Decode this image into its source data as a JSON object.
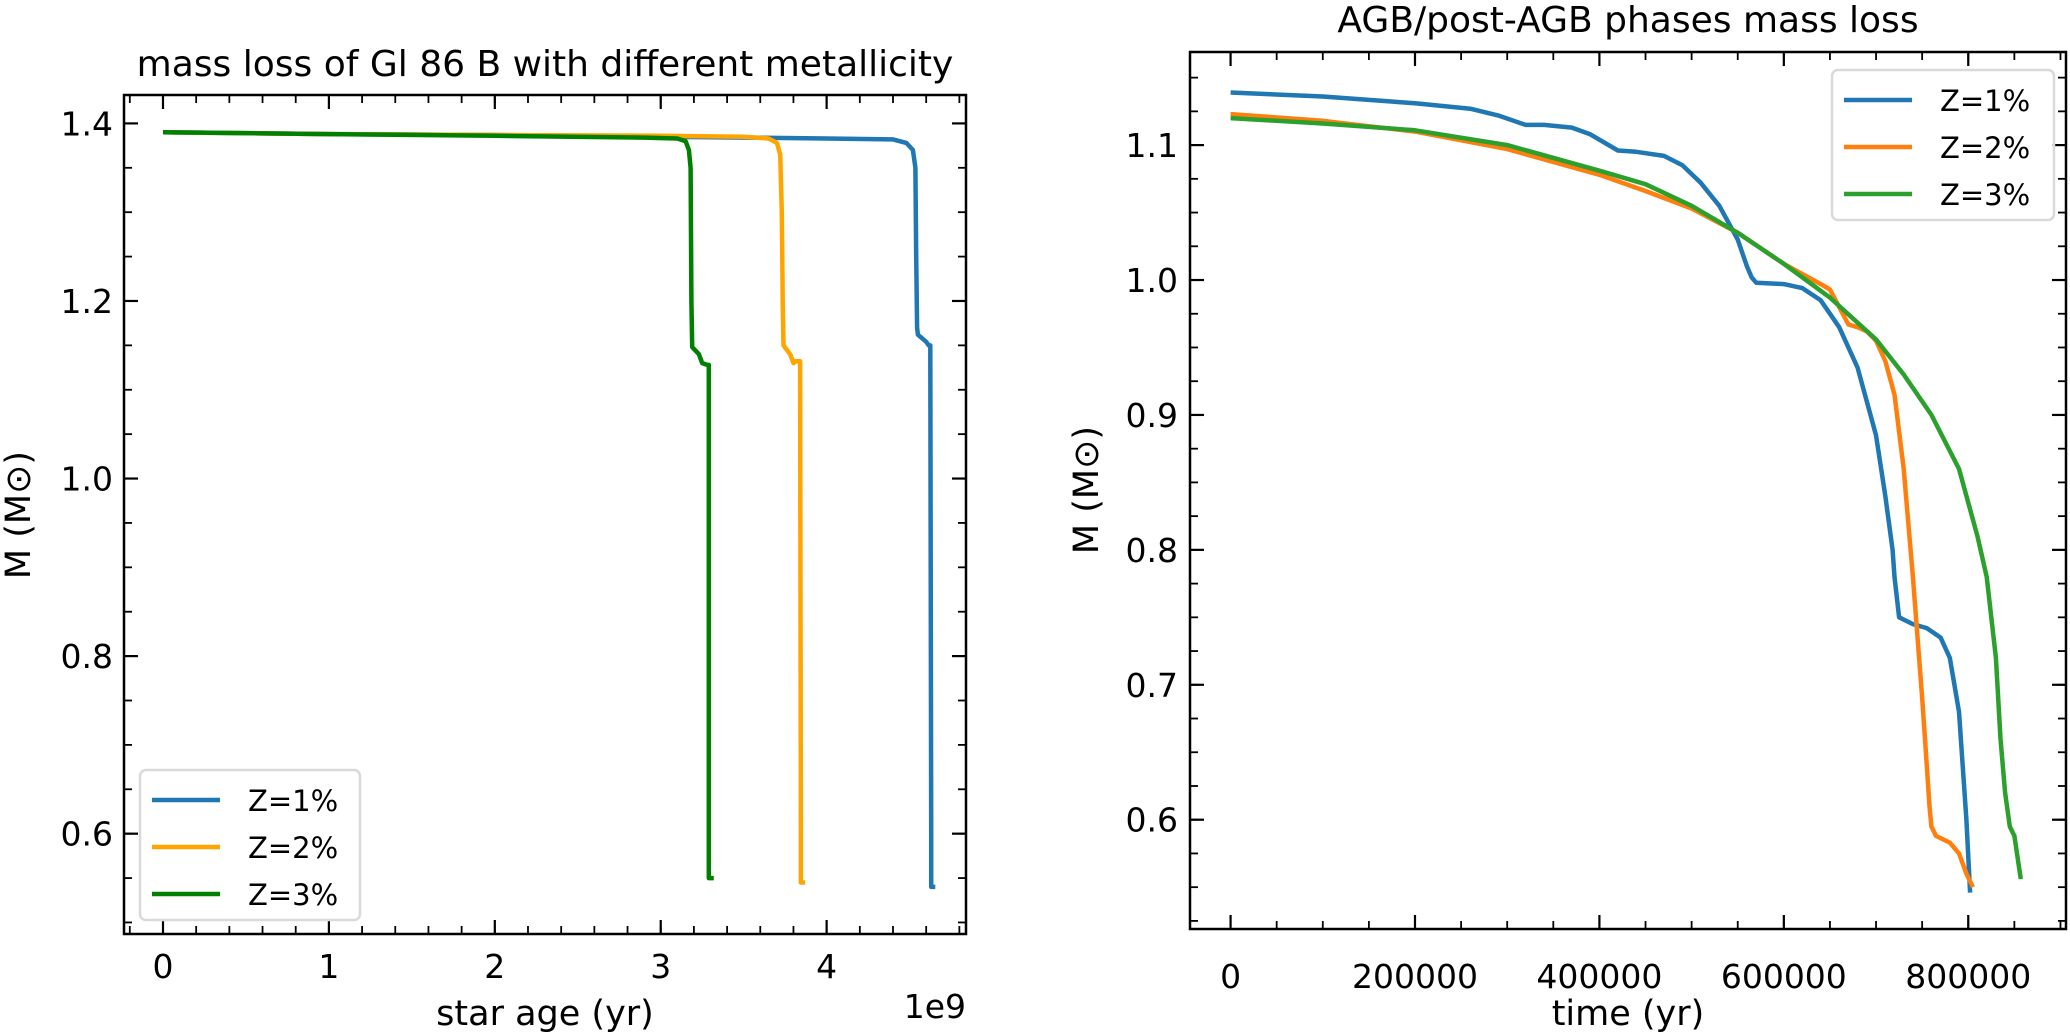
{
  "chart_data": [
    {
      "type": "line",
      "title": "mass loss of Gl 86 B with different metallicity",
      "xlabel": "star age (yr)",
      "ylabel": "M (M⊙)",
      "x_offset_label": "1e9",
      "xlim": [
        -0.235,
        4.84
      ],
      "ylim": [
        0.487,
        1.432
      ],
      "xticks": [
        0,
        1,
        2,
        3,
        4
      ],
      "xtick_labels": [
        "0",
        "1",
        "2",
        "3",
        "4"
      ],
      "yticks": [
        0.6,
        0.8,
        1.0,
        1.2,
        1.4
      ],
      "ytick_labels": [
        "0.6",
        "0.8",
        "1.0",
        "1.2",
        "1.4"
      ],
      "x_minor_step": 0.2,
      "y_minor_step": 0.05,
      "grid": false,
      "legend_position": "lower-left",
      "series": [
        {
          "name": "Z=1%",
          "color": "#1f77b4",
          "x": [
            0,
            1.0,
            2.0,
            3.0,
            4.0,
            4.4,
            4.48,
            4.52,
            4.535,
            4.54,
            4.545,
            4.55,
            4.6,
            4.615,
            4.625,
            4.63,
            4.63,
            4.655
          ],
          "y": [
            1.39,
            1.388,
            1.387,
            1.385,
            1.383,
            1.382,
            1.378,
            1.37,
            1.35,
            1.25,
            1.17,
            1.162,
            1.154,
            1.15,
            1.15,
            0.6,
            0.54,
            0.54
          ]
        },
        {
          "name": "Z=2%",
          "color": "#ffa500",
          "x": [
            0,
            1.0,
            2.0,
            3.0,
            3.5,
            3.65,
            3.7,
            3.72,
            3.73,
            3.735,
            3.74,
            3.78,
            3.8,
            3.81,
            3.84,
            3.845,
            3.845,
            3.87
          ],
          "y": [
            1.39,
            1.388,
            1.387,
            1.386,
            1.385,
            1.383,
            1.378,
            1.365,
            1.3,
            1.2,
            1.15,
            1.14,
            1.13,
            1.132,
            1.132,
            0.6,
            0.545,
            0.545
          ]
        },
        {
          "name": "Z=3%",
          "color": "#008000",
          "x": [
            0,
            1.0,
            2.0,
            2.9,
            3.1,
            3.15,
            3.17,
            3.18,
            3.185,
            3.19,
            3.23,
            3.25,
            3.28,
            3.29,
            3.29,
            3.32
          ],
          "y": [
            1.39,
            1.388,
            1.386,
            1.384,
            1.383,
            1.38,
            1.37,
            1.35,
            1.2,
            1.148,
            1.14,
            1.13,
            1.128,
            1.128,
            0.55,
            0.55
          ]
        }
      ]
    },
    {
      "type": "line",
      "title": "AGB/post-AGB phases mass loss",
      "xlabel": "time (yr)",
      "ylabel": "M (M⊙)",
      "xlim": [
        -44000,
        906000
      ],
      "ylim": [
        0.519,
        1.169
      ],
      "xticks": [
        0,
        200000,
        400000,
        600000,
        800000
      ],
      "xtick_labels": [
        "0",
        "200000",
        "400000",
        "600000",
        "800000"
      ],
      "yticks": [
        0.6,
        0.7,
        0.8,
        0.9,
        1.0,
        1.1
      ],
      "ytick_labels": [
        "0.6",
        "0.7",
        "0.8",
        "0.9",
        "1.0",
        "1.1"
      ],
      "x_minor_step": 50000,
      "y_minor_step": 0.025,
      "grid": false,
      "legend_position": "top-right",
      "series": [
        {
          "name": "Z=1%",
          "color": "#1f77b4",
          "x": [
            0,
            100000,
            200000,
            260000,
            290000,
            320000,
            340000,
            370000,
            390000,
            420000,
            440000,
            470000,
            490000,
            510000,
            530000,
            550000,
            560000,
            565000,
            570000,
            600000,
            620000,
            640000,
            660000,
            680000,
            700000,
            710000,
            718000,
            720000,
            725000,
            740000,
            755000,
            770000,
            780000,
            790000,
            798000,
            802000
          ],
          "y": [
            1.139,
            1.136,
            1.131,
            1.127,
            1.122,
            1.115,
            1.115,
            1.113,
            1.108,
            1.096,
            1.095,
            1.092,
            1.085,
            1.072,
            1.055,
            1.03,
            1.01,
            1.002,
            0.998,
            0.997,
            0.994,
            0.985,
            0.965,
            0.935,
            0.885,
            0.84,
            0.8,
            0.78,
            0.75,
            0.745,
            0.742,
            0.735,
            0.72,
            0.68,
            0.6,
            0.546
          ]
        },
        {
          "name": "Z=2%",
          "color": "#ff7f0e",
          "x": [
            0,
            100000,
            200000,
            300000,
            400000,
            450000,
            500000,
            550000,
            600000,
            640000,
            650000,
            660000,
            670000,
            680000,
            690000,
            700000,
            710000,
            720000,
            730000,
            740000,
            750000,
            755000,
            758000,
            760000,
            765000,
            780000,
            790000,
            798000,
            805000
          ],
          "y": [
            1.123,
            1.118,
            1.11,
            1.097,
            1.078,
            1.066,
            1.053,
            1.035,
            1.012,
            0.997,
            0.993,
            0.98,
            0.967,
            0.965,
            0.962,
            0.955,
            0.94,
            0.915,
            0.86,
            0.78,
            0.69,
            0.64,
            0.61,
            0.595,
            0.588,
            0.583,
            0.575,
            0.56,
            0.55
          ]
        },
        {
          "name": "Z=3%",
          "color": "#2ca02c",
          "x": [
            0,
            100000,
            200000,
            300000,
            400000,
            450000,
            500000,
            550000,
            600000,
            650000,
            700000,
            730000,
            760000,
            790000,
            810000,
            820000,
            830000,
            835000,
            840000,
            845000,
            850000,
            857000
          ],
          "y": [
            1.12,
            1.116,
            1.111,
            1.1,
            1.081,
            1.071,
            1.055,
            1.035,
            1.012,
            0.987,
            0.956,
            0.93,
            0.9,
            0.86,
            0.81,
            0.78,
            0.72,
            0.66,
            0.62,
            0.595,
            0.588,
            0.556
          ]
        }
      ]
    }
  ]
}
